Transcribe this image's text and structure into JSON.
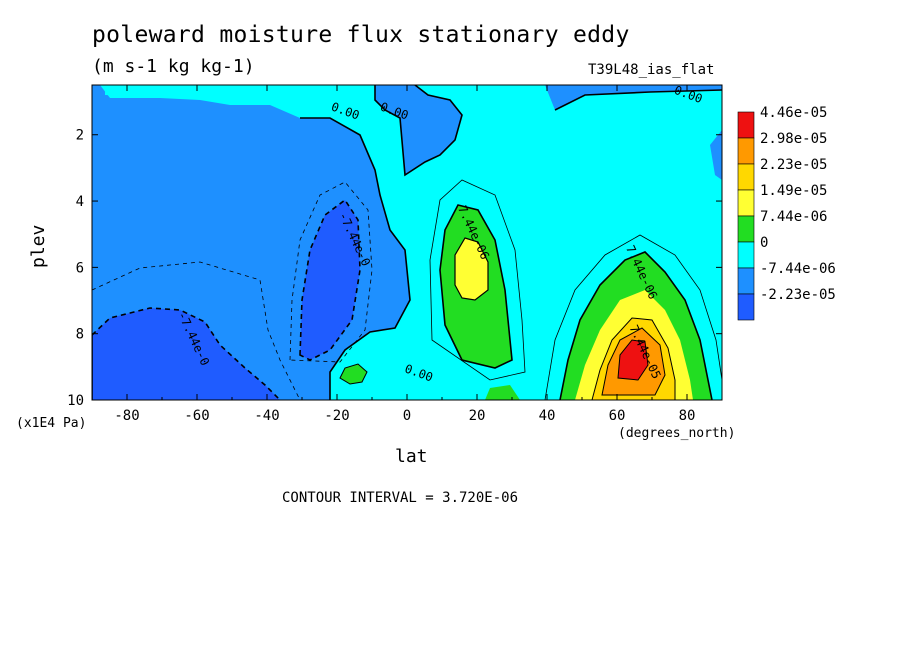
{
  "chart_data": {
    "type": "heatmap",
    "title": "poleward moisture flux stationary eddy",
    "units": "(m s-1 kg kg-1)",
    "dataset": "T39L48_ias_flat",
    "xlabel": "lat",
    "x_units": "(degrees_north)",
    "ylabel": "plev",
    "y_units": "(x1E4 Pa)",
    "xlim": [
      -90,
      90
    ],
    "ylim": [
      10,
      0.5
    ],
    "x_ticks": [
      "-80",
      "-60",
      "-40",
      "-20",
      "0",
      "20",
      "40",
      "60",
      "80"
    ],
    "y_ticks": [
      "2",
      "4",
      "6",
      "8",
      "10"
    ],
    "contour_interval": "CONTOUR INTERVAL = 3.720E-06",
    "legend": {
      "placement": "right",
      "levels": [
        "4.46e-05",
        "2.98e-05",
        "2.23e-05",
        "1.49e-05",
        "7.44e-06",
        "0",
        "-7.44e-06",
        "-2.23e-05"
      ],
      "colors": [
        "#ee1111",
        "#ff9900",
        "#ffd800",
        "#ffff33",
        "#22dd22",
        "#00ffff",
        "#1e90ff",
        "#1f5cff"
      ]
    },
    "contour_labels": [
      {
        "text": "0.00",
        "lat": -18,
        "plev": 1.4
      },
      {
        "text": "0.00",
        "lat": -4,
        "plev": 1.4
      },
      {
        "text": "0.00",
        "lat": 80,
        "plev": 0.9
      },
      {
        "text": "-7.44e-0",
        "lat": -16,
        "plev": 5.2
      },
      {
        "text": "-7.44e-0",
        "lat": -62,
        "plev": 8.2
      },
      {
        "text": "7.44e-06",
        "lat": 18,
        "plev": 5.0
      },
      {
        "text": "7.44e-06",
        "lat": 66,
        "plev": 6.2
      },
      {
        "text": "7.44e-05",
        "lat": 67,
        "plev": 8.6
      },
      {
        "text": "0.00",
        "lat": 3,
        "plev": 9.3
      }
    ]
  }
}
